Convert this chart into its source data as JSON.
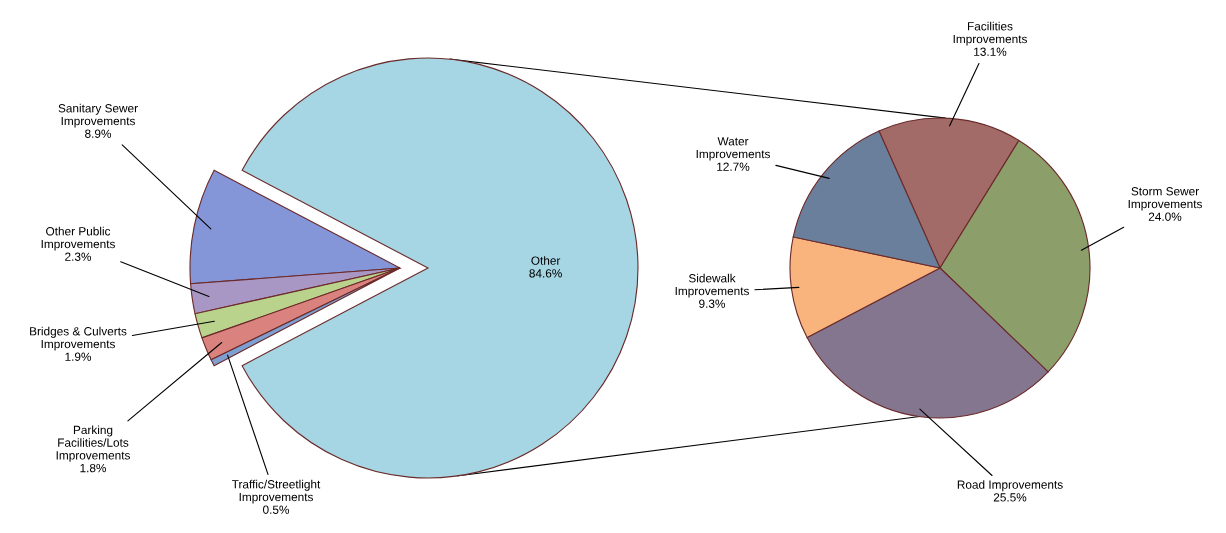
{
  "chart_data": [
    {
      "type": "pie",
      "categories": [
        "Other",
        "Sanitary Sewer\nImprovements",
        "Other Public\nImprovements",
        "Bridges & Culverts\nImprovements",
        "Parking\nFacilities/Lots\nImprovements",
        "Traffic/Streetlight\nImprovements"
      ],
      "values": [
        84.6,
        8.9,
        2.3,
        1.9,
        1.8,
        0.5
      ],
      "value_labels": [
        "84.6%",
        "8.9%",
        "2.3%",
        "1.9%",
        "1.8%",
        "0.5%"
      ],
      "colors": [
        "#a6d5e3",
        "#8496d8",
        "#a897c4",
        "#b9d38c",
        "#d9827e",
        "#7f9fd0"
      ]
    },
    {
      "type": "pie",
      "categories": [
        "Facilities\nImprovements",
        "Storm Sewer\nImprovements",
        "Road Improvements",
        "Sidewalk\nImprovements",
        "Water\nImprovements"
      ],
      "values": [
        13.1,
        24.0,
        25.5,
        9.3,
        12.7
      ],
      "value_labels": [
        "13.1%",
        "24.0%",
        "25.5%",
        "9.3%",
        "12.7%"
      ],
      "colors": [
        "#a36b68",
        "#8c9e6a",
        "#85768f",
        "#f9b47e",
        "#6a7f9c"
      ]
    }
  ]
}
